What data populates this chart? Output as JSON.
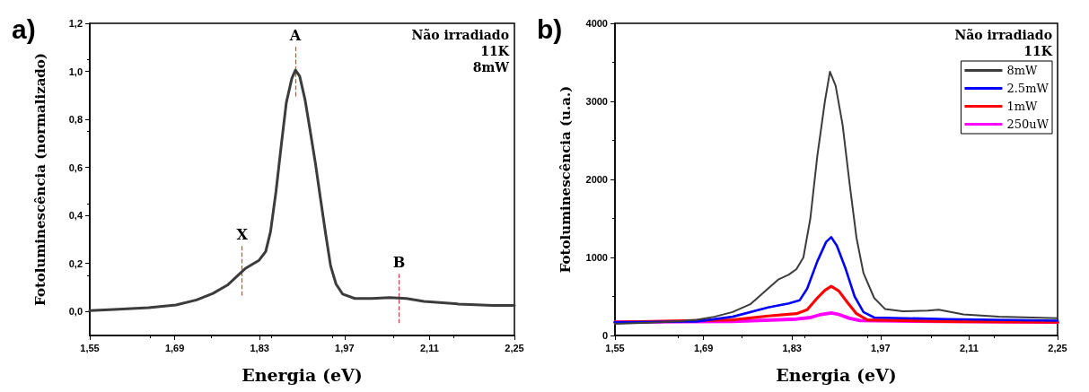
{
  "chart_data": [
    {
      "type": "line",
      "title": "a)",
      "xlabel": "Energia (eV)",
      "ylabel": "Fotoluminescência (normalizado)",
      "annotations": [
        "Não irradiado",
        "11K",
        "8mW",
        {
          "text": "X",
          "x": 1.801,
          "y": 0.17
        },
        {
          "text": "A",
          "x": 1.889,
          "y": 1.0
        },
        {
          "text": "B",
          "x": 2.06,
          "y": 0.055
        }
      ],
      "xlim": [
        1.55,
        2.25
      ],
      "xticks": [
        {
          "value": 1.55,
          "label": "1,55"
        },
        {
          "value": 1.69,
          "label": "1,69"
        },
        {
          "value": 1.83,
          "label": "1,83"
        },
        {
          "value": 1.97,
          "label": "1,97"
        },
        {
          "value": 2.11,
          "label": "2,11"
        },
        {
          "value": 2.25,
          "label": "2,25"
        }
      ],
      "ylim": [
        -0.1,
        1.2
      ],
      "yticks": [
        {
          "value": 0,
          "label": "0,0"
        },
        {
          "value": 0.2,
          "label": "0,2"
        },
        {
          "value": 0.4,
          "label": "0,4"
        },
        {
          "value": 0.6,
          "label": "0,6"
        },
        {
          "value": 0.8,
          "label": "0,8"
        },
        {
          "value": 1.0,
          "label": "1,0"
        },
        {
          "value": 1.2,
          "label": "1,2"
        }
      ],
      "grid": false,
      "legend": false,
      "marker": "none",
      "line_style": "solid",
      "series": [
        {
          "color": "#3c3c3c",
          "x": [
            1.55,
            1.59,
            1.647,
            1.692,
            1.726,
            1.753,
            1.777,
            1.794,
            1.806,
            1.817,
            1.829,
            1.84,
            1.848,
            1.857,
            1.866,
            1.874,
            1.883,
            1.889,
            1.896,
            1.905,
            1.913,
            1.922,
            1.93,
            1.939,
            1.947,
            1.956,
            1.967,
            1.987,
            2.015,
            2.044,
            2.072,
            2.101,
            2.158,
            2.214,
            2.25
          ],
          "values": [
            0.004,
            0.008,
            0.016,
            0.027,
            0.048,
            0.075,
            0.11,
            0.15,
            0.178,
            0.195,
            0.213,
            0.25,
            0.333,
            0.5,
            0.7,
            0.87,
            0.97,
            1.005,
            0.98,
            0.88,
            0.757,
            0.616,
            0.475,
            0.32,
            0.19,
            0.114,
            0.072,
            0.054,
            0.054,
            0.058,
            0.054,
            0.042,
            0.031,
            0.025,
            0.025
          ]
        }
      ]
    },
    {
      "type": "line",
      "title": "b)",
      "xlabel": "Energia (eV)",
      "ylabel": "Fotoluminescência (u.a.)",
      "annotations": [
        "Não irradiado",
        "11K"
      ],
      "xlim": [
        1.55,
        2.25
      ],
      "xticks": [
        {
          "value": 1.55,
          "label": "1,55"
        },
        {
          "value": 1.69,
          "label": "1,69"
        },
        {
          "value": 1.83,
          "label": "1,83"
        },
        {
          "value": 1.97,
          "label": "1,97"
        },
        {
          "value": 2.11,
          "label": "2,11"
        },
        {
          "value": 2.25,
          "label": "2,25"
        }
      ],
      "ylim": [
        0,
        4000
      ],
      "yticks": [
        0,
        1000,
        2000,
        3000,
        4000
      ],
      "grid": false,
      "legend": "top right",
      "marker": "none",
      "line_style": "solid",
      "series": [
        {
          "name": "8mW",
          "color": "#3c3c3c",
          "x": [
            1.55,
            1.623,
            1.679,
            1.707,
            1.736,
            1.764,
            1.792,
            1.809,
            1.825,
            1.837,
            1.848,
            1.859,
            1.87,
            1.882,
            1.89,
            1.899,
            1.91,
            1.921,
            1.932,
            1.943,
            1.96,
            1.977,
            2.005,
            2.045,
            2.062,
            2.101,
            2.157,
            2.25
          ],
          "values": [
            150,
            170,
            200,
            240,
            300,
            400,
            600,
            720,
            780,
            850,
            1000,
            1500,
            2300,
            3000,
            3380,
            3200,
            2700,
            1950,
            1250,
            800,
            480,
            340,
            310,
            320,
            330,
            270,
            240,
            220
          ]
        },
        {
          "name": "2.5mW",
          "color": "#0000ff",
          "x": [
            1.55,
            1.679,
            1.736,
            1.792,
            1.825,
            1.842,
            1.854,
            1.87,
            1.884,
            1.892,
            1.901,
            1.915,
            1.929,
            1.943,
            1.96,
            2.073,
            2.25
          ],
          "values": [
            170,
            180,
            240,
            360,
            410,
            450,
            600,
            950,
            1200,
            1260,
            1150,
            850,
            500,
            300,
            230,
            210,
            190
          ]
        },
        {
          "name": "1mW",
          "color": "#ff0000",
          "x": [
            1.55,
            1.736,
            1.792,
            1.837,
            1.854,
            1.87,
            1.882,
            1.892,
            1.904,
            1.918,
            1.932,
            1.949,
            2.073,
            2.25
          ],
          "values": [
            170,
            200,
            250,
            280,
            330,
            480,
            580,
            630,
            570,
            420,
            280,
            200,
            180,
            170
          ]
        },
        {
          "name": "250uW",
          "color": "#ff00ff",
          "x": [
            1.55,
            1.736,
            1.837,
            1.859,
            1.876,
            1.892,
            1.904,
            1.921,
            1.938,
            2.073,
            2.25
          ],
          "values": [
            170,
            180,
            210,
            230,
            270,
            290,
            270,
            220,
            190,
            180,
            170
          ]
        }
      ]
    }
  ]
}
